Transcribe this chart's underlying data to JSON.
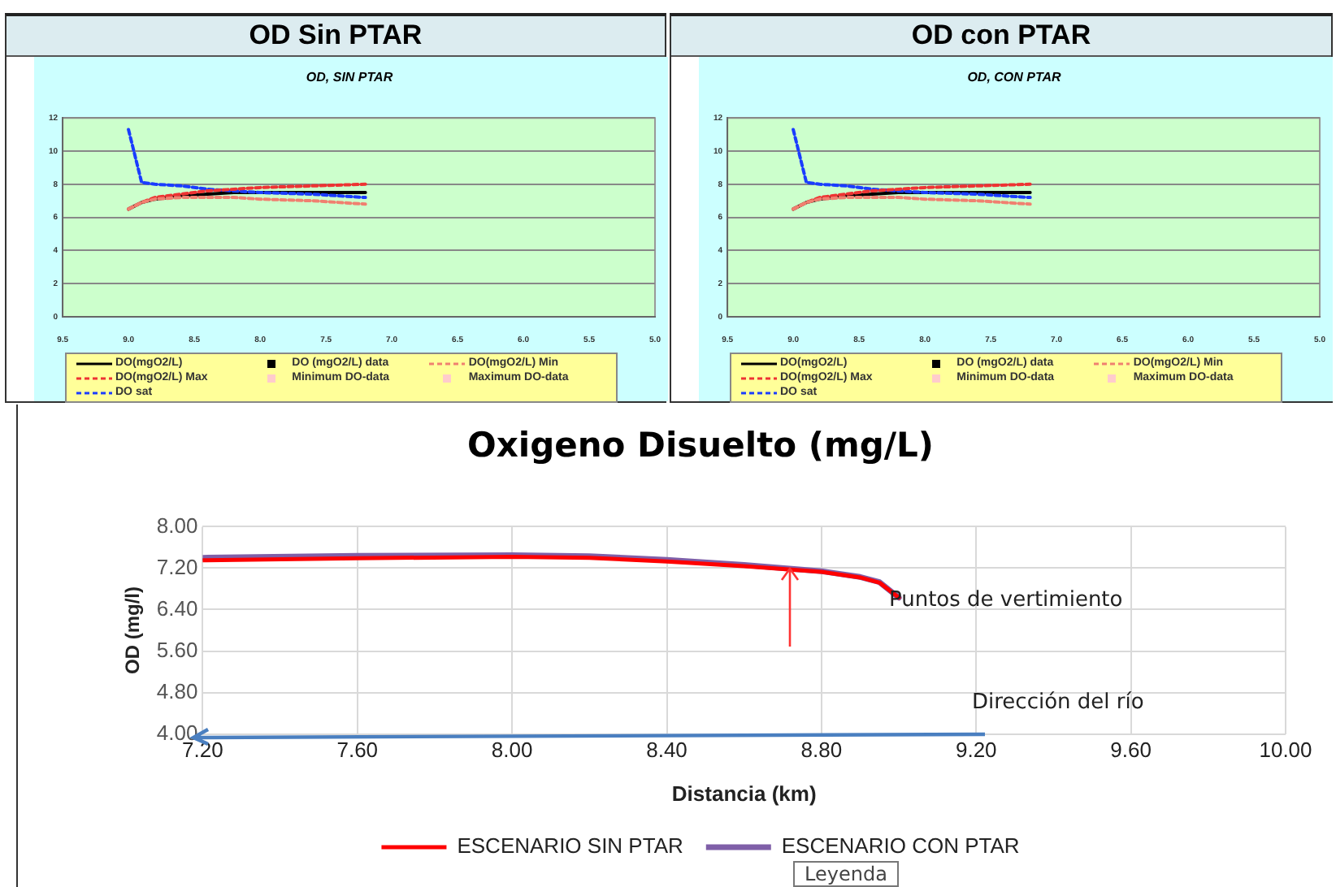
{
  "chart_data": [
    {
      "type": "line",
      "title": "OD Sin PTAR",
      "subtitle": "OD, SIN PTAR",
      "x": [
        9.0,
        8.9,
        8.8,
        8.6,
        8.4,
        8.2,
        8.0,
        7.6,
        7.2
      ],
      "series": [
        {
          "name": "DO(mgO2/L)",
          "color": "#000000",
          "line_style": "solid",
          "values": [
            6.5,
            6.9,
            7.1,
            7.3,
            7.4,
            7.5,
            7.5,
            7.5,
            7.5
          ]
        },
        {
          "name": "DO (mgO2/L) data",
          "color": "#000000",
          "type": "scatter",
          "marker": "square",
          "values": [
            null,
            null,
            null,
            null,
            null,
            null,
            null,
            null,
            null
          ]
        },
        {
          "name": "DO(mgO2/L) Min",
          "color": "#f08070",
          "line_style": "dashed",
          "values": [
            6.5,
            6.9,
            7.1,
            7.2,
            7.2,
            7.2,
            7.1,
            7.0,
            6.8
          ]
        },
        {
          "name": "DO(mgO2/L) Max",
          "color": "#ee3333",
          "line_style": "dashed",
          "values": [
            6.5,
            6.9,
            7.2,
            7.4,
            7.6,
            7.7,
            7.8,
            7.9,
            8.0
          ]
        },
        {
          "name": "Minimum DO-data",
          "color": "#ffcccc",
          "type": "scatter",
          "marker": "square",
          "values": [
            null,
            null,
            null,
            null,
            null,
            null,
            null,
            null,
            null
          ]
        },
        {
          "name": "Maximum DO-data",
          "color": "#ffcccc",
          "type": "scatter",
          "marker": "square",
          "values": [
            null,
            null,
            null,
            null,
            null,
            null,
            null,
            null,
            null
          ]
        },
        {
          "name": "DO sat",
          "color": "#1a3cff",
          "line_style": "dashed",
          "x": [
            9.0,
            8.9,
            8.8,
            8.6,
            8.4,
            8.0,
            7.6,
            7.2
          ],
          "values": [
            11.3,
            8.1,
            8.0,
            7.9,
            7.7,
            7.5,
            7.4,
            7.2
          ]
        }
      ],
      "xlim": [
        9.5,
        5.0
      ],
      "xticks": [
        9.5,
        {
          "value": 9,
          "label": "9.0"
        },
        8.5,
        {
          "value": 8,
          "label": "8.0"
        },
        7.5,
        {
          "value": 7,
          "label": "7.0"
        },
        6.5,
        {
          "value": 6,
          "label": "6.0"
        },
        5.5,
        {
          "value": 5,
          "label": "5.0"
        }
      ],
      "ylim": [
        0,
        12
      ],
      "yticks": [
        0,
        2,
        4,
        6,
        8,
        10,
        12
      ],
      "grid": "y",
      "legend": "bottom",
      "marker": "none"
    },
    {
      "type": "line",
      "title": "OD con PTAR",
      "subtitle": "OD, CON PTAR",
      "x": [
        9.0,
        8.9,
        8.8,
        8.6,
        8.4,
        8.2,
        8.0,
        7.6,
        7.2
      ],
      "series": [
        {
          "name": "DO(mgO2/L)",
          "color": "#000000",
          "line_style": "solid",
          "values": [
            6.5,
            6.9,
            7.1,
            7.3,
            7.4,
            7.5,
            7.5,
            7.5,
            7.5
          ]
        },
        {
          "name": "DO (mgO2/L) data",
          "color": "#000000",
          "type": "scatter",
          "marker": "square",
          "values": [
            null,
            null,
            null,
            null,
            null,
            null,
            null,
            null,
            null
          ]
        },
        {
          "name": "DO(mgO2/L) Min",
          "color": "#f08070",
          "line_style": "dashed",
          "values": [
            6.5,
            6.9,
            7.1,
            7.2,
            7.2,
            7.2,
            7.1,
            7.0,
            6.8
          ]
        },
        {
          "name": "DO(mgO2/L) Max",
          "color": "#ee3333",
          "line_style": "dashed",
          "values": [
            6.5,
            6.9,
            7.2,
            7.4,
            7.6,
            7.7,
            7.8,
            7.9,
            8.0
          ]
        },
        {
          "name": "Minimum DO-data",
          "color": "#ffcccc",
          "type": "scatter",
          "marker": "square",
          "values": [
            null,
            null,
            null,
            null,
            null,
            null,
            null,
            null,
            null
          ]
        },
        {
          "name": "Maximum DO-data",
          "color": "#ffcccc",
          "type": "scatter",
          "marker": "square",
          "values": [
            null,
            null,
            null,
            null,
            null,
            null,
            null,
            null,
            null
          ]
        },
        {
          "name": "DO sat",
          "color": "#1a3cff",
          "line_style": "dashed",
          "x": [
            9.0,
            8.9,
            8.8,
            8.6,
            8.4,
            8.0,
            7.6,
            7.2
          ],
          "values": [
            11.3,
            8.1,
            8.0,
            7.9,
            7.7,
            7.5,
            7.4,
            7.2
          ]
        }
      ],
      "xlim": [
        9.5,
        5.0
      ],
      "xticks": [
        9.5,
        {
          "value": 9,
          "label": "9.0"
        },
        8.5,
        {
          "value": 8,
          "label": "8.0"
        },
        7.5,
        {
          "value": 7,
          "label": "7.0"
        },
        6.5,
        {
          "value": 6,
          "label": "6.0"
        },
        5.5,
        {
          "value": 5,
          "label": "5.0"
        }
      ],
      "ylim": [
        0,
        12
      ],
      "yticks": [
        0,
        2,
        4,
        6,
        8,
        10,
        12
      ],
      "grid": "y",
      "legend": "bottom",
      "marker": "none"
    },
    {
      "type": "line",
      "title": "Oxigeno Disuelto (mg/L)",
      "xlabel": "Distancia (km)",
      "ylabel": "OD (mg/l)",
      "x": [
        7.2,
        7.6,
        8.0,
        8.2,
        8.4,
        8.6,
        8.8,
        8.9,
        8.95,
        9.0
      ],
      "series": [
        {
          "name": "ESCENARIO SIN PTAR",
          "color": "#ff0000",
          "values": [
            7.35,
            7.39,
            7.42,
            7.4,
            7.33,
            7.24,
            7.13,
            7.02,
            6.92,
            6.63
          ]
        },
        {
          "name": "ESCENARIO CON PTAR",
          "color": "#7f5fa8",
          "values": [
            7.4,
            7.44,
            7.45,
            7.43,
            7.36,
            7.26,
            7.14,
            7.03,
            6.93,
            6.63
          ]
        }
      ],
      "xlim": [
        7.2,
        10.0
      ],
      "xticks": [
        {
          "value": 7.2,
          "label": "7.20"
        },
        {
          "value": 7.6,
          "label": "7.60"
        },
        {
          "value": 8,
          "label": "8.00"
        },
        {
          "value": 8.4,
          "label": "8.40"
        },
        {
          "value": 8.8,
          "label": "8.80"
        },
        {
          "value": 9.2,
          "label": "9.20"
        },
        {
          "value": 9.6,
          "label": "9.60"
        },
        {
          "value": 10,
          "label": "10.00"
        }
      ],
      "ylim": [
        4.0,
        8.0
      ],
      "yticks": [
        {
          "value": 4,
          "label": "4.00"
        },
        {
          "value": 4.8,
          "label": "4.80"
        },
        {
          "value": 5.6,
          "label": "5.60"
        },
        {
          "value": 6.4,
          "label": "6.40"
        },
        {
          "value": 7.2,
          "label": "7.20"
        },
        {
          "value": 8,
          "label": "8.00"
        }
      ],
      "grid": true,
      "legend": "bottom",
      "marker": "none",
      "line_style": "solid",
      "annotations": [
        "Puntos de vertimiento",
        "Dirección del río",
        "Leyenda"
      ]
    }
  ]
}
